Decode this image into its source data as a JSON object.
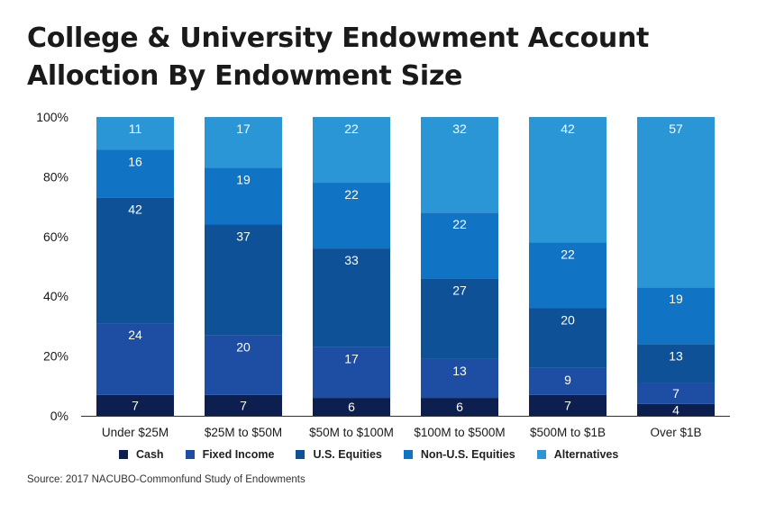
{
  "title_line1": "College & University Endowment Account",
  "title_line2": "Alloction By Endowment Size",
  "source": "Source: 2017 NACUBO-Commonfund Study of Endowments",
  "chart_data": {
    "type": "bar",
    "stacked": true,
    "categories": [
      "Under $25M",
      "$25M to $50M",
      "$50M to $100M",
      "$100M to $500M",
      "$500M to $1B",
      "Over $1B"
    ],
    "series": [
      {
        "name": "Cash",
        "color": "#0d1f4f",
        "values": [
          7,
          7,
          6,
          6,
          7,
          4
        ]
      },
      {
        "name": "Fixed Income",
        "color": "#1d4ea3",
        "values": [
          24,
          20,
          17,
          13,
          9,
          7
        ]
      },
      {
        "name": "U.S. Equities",
        "color": "#0e5196",
        "values": [
          42,
          37,
          33,
          27,
          20,
          13
        ]
      },
      {
        "name": "Non-U.S. Equities",
        "color": "#1173c4",
        "values": [
          16,
          19,
          22,
          22,
          22,
          19
        ]
      },
      {
        "name": "Alternatives",
        "color": "#2b96d6",
        "values": [
          11,
          17,
          22,
          32,
          42,
          57
        ]
      }
    ],
    "y_ticks": [
      "0%",
      "20%",
      "40%",
      "60%",
      "80%",
      "100%"
    ],
    "ylim": [
      0,
      100
    ],
    "legend_position": "bottom"
  }
}
